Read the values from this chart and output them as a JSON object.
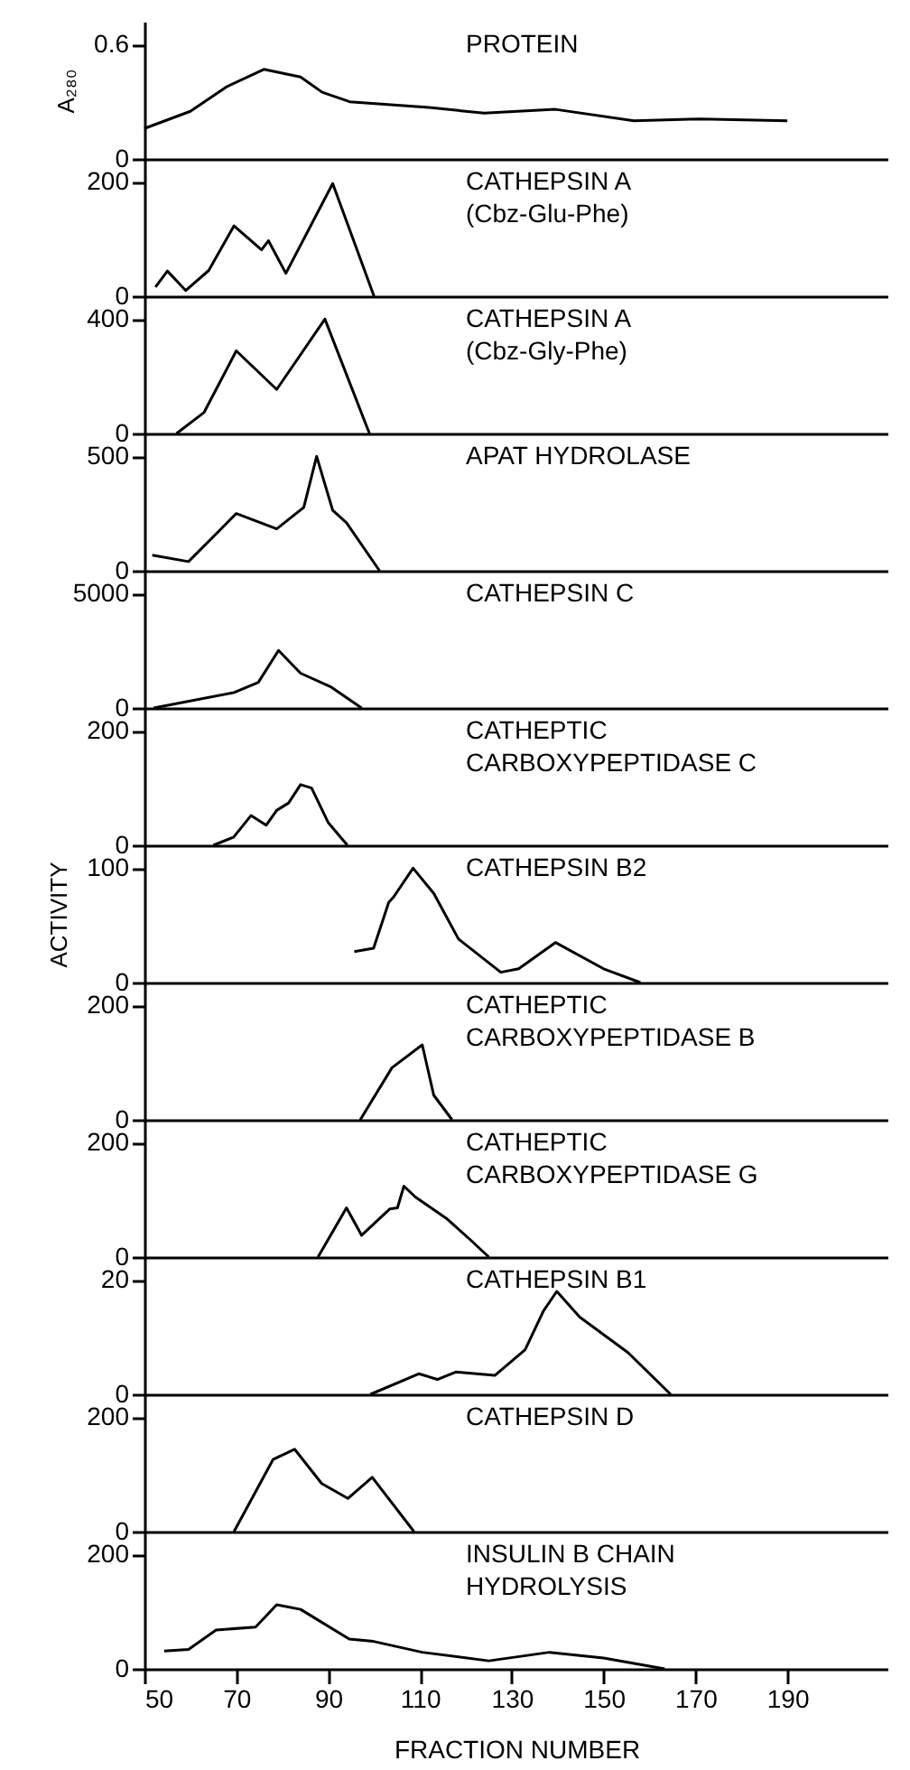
{
  "chart_data": [
    {
      "type": "line",
      "title": "PROTEIN",
      "ylabel": "A₂₈₀",
      "tick_labels": "y",
      "xlim": [
        50,
        212
      ],
      "ylim": [
        0,
        0.72
      ],
      "yticks": [
        0,
        0.6
      ],
      "x": [
        50,
        60,
        68,
        76,
        84,
        88.7,
        94.7,
        112,
        124,
        139.5,
        156.6,
        171,
        190
      ],
      "series": [
        {
          "color": "#000000",
          "values": [
            0.16,
            0.25,
            0.38,
            0.47,
            0.43,
            0.35,
            0.3,
            0.27,
            0.24,
            0.26,
            0.2,
            0.21,
            0.2
          ]
        }
      ]
    },
    {
      "type": "line",
      "title": "CATHEPSIN A\n(Cbz-Glu-Phe)",
      "tick_labels": "y",
      "xlim": [
        50,
        212
      ],
      "ylim": [
        0,
        240
      ],
      "yticks": [
        0,
        200
      ],
      "x": [
        52.4,
        55,
        59,
        64,
        69.5,
        75.5,
        77,
        80.8,
        91,
        100
      ],
      "series": [
        {
          "color": "#000000",
          "values": [
            16,
            44,
            10,
            45,
            123,
            81,
            97,
            40,
            197,
            0
          ]
        }
      ]
    },
    {
      "type": "line",
      "title": "CATHEPSIN A\n(Cbz-Gly-Phe)",
      "tick_labels": "y",
      "xlim": [
        50,
        212
      ],
      "ylim": [
        0,
        480
      ],
      "yticks": [
        0,
        400
      ],
      "x": [
        57,
        63,
        70,
        78.8,
        89.3,
        99
      ],
      "series": [
        {
          "color": "#000000",
          "values": [
            0,
            74,
            289,
            154,
            400,
            0
          ]
        }
      ]
    },
    {
      "type": "line",
      "title": "APAT HYDROLASE",
      "tick_labels": "y",
      "xlim": [
        50,
        212
      ],
      "ylim": [
        0,
        600
      ],
      "yticks": [
        0,
        500
      ],
      "x": [
        51.7,
        59.6,
        66,
        70,
        78.8,
        84.7,
        87.5,
        91,
        94,
        101.2
      ],
      "series": [
        {
          "color": "#000000",
          "values": [
            68,
            40,
            169,
            250,
            183,
            277,
            500,
            264,
            210,
            0
          ]
        }
      ]
    },
    {
      "type": "line",
      "title": "CATHEPSIN C",
      "tick_labels": "y",
      "xlim": [
        50,
        212
      ],
      "ylim": [
        0,
        6000
      ],
      "yticks": [
        0,
        5000
      ],
      "x": [
        52,
        69.5,
        74.8,
        79.2,
        84,
        90.7,
        97.3
      ],
      "series": [
        {
          "color": "#000000",
          "values": [
            0,
            675,
            1120,
            2515,
            1520,
            910,
            0
          ]
        }
      ]
    },
    {
      "type": "line",
      "title": "CATHEPTIC\nCARBOXYPEPTIDASE  C",
      "tick_labels": "y",
      "xlim": [
        50,
        212
      ],
      "ylim": [
        0,
        240
      ],
      "yticks": [
        0,
        200
      ],
      "x": [
        65,
        69.4,
        73.2,
        76.5,
        78.8,
        81.4,
        84,
        86.4,
        90,
        94.2
      ],
      "series": [
        {
          "color": "#000000",
          "values": [
            0,
            14,
            52,
            35,
            61,
            74,
            106,
            100,
            40,
            0
          ]
        }
      ]
    },
    {
      "type": "line",
      "title": "CATHEPSIN  B2",
      "ylabel": "ACTIVITY",
      "tick_labels": "y",
      "xlim": [
        50,
        212
      ],
      "ylim": [
        0,
        120
      ],
      "yticks": [
        0,
        100
      ],
      "x": [
        95.7,
        99.9,
        103.2,
        104.3,
        108.5,
        113,
        118.4,
        127.6,
        131.5,
        139.5,
        150,
        158
      ],
      "series": [
        {
          "color": "#000000",
          "values": [
            27,
            30,
            70,
            75,
            100,
            78,
            38,
            9,
            12,
            35,
            12,
            0
          ]
        }
      ]
    },
    {
      "type": "line",
      "title": "CATHEPTIC\nCARBOXYPEPTIDASE  B",
      "tick_labels": "y",
      "xlim": [
        50,
        212
      ],
      "ylim": [
        0,
        240
      ],
      "yticks": [
        0,
        200
      ],
      "x": [
        97,
        103.9,
        110.5,
        113,
        117
      ],
      "series": [
        {
          "color": "#000000",
          "values": [
            0,
            91,
            131,
            43,
            0
          ]
        }
      ]
    },
    {
      "type": "line",
      "title": "CATHEPTIC\nCARBOXYPEPTIDASE  G",
      "tick_labels": "y",
      "xlim": [
        50,
        212
      ],
      "ylim": [
        0,
        240
      ],
      "yticks": [
        0,
        200
      ],
      "x": [
        87.8,
        94,
        97.3,
        103.4,
        105.1,
        106.5,
        109,
        115.7,
        121,
        125
      ],
      "series": [
        {
          "color": "#000000",
          "values": [
            0,
            86,
            38,
            84,
            86,
            124,
            105,
            68,
            30,
            0
          ]
        }
      ]
    },
    {
      "type": "line",
      "title": "CATHEPSIN  B1",
      "tick_labels": "y",
      "xlim": [
        50,
        212
      ],
      "ylim": [
        0,
        24
      ],
      "yticks": [
        0,
        20
      ],
      "x": [
        99.2,
        109.8,
        113.8,
        117.8,
        126.3,
        132.9,
        136.9,
        139.8,
        144.8,
        155.3,
        164.6
      ],
      "series": [
        {
          "color": "#000000",
          "values": [
            0,
            3.6,
            2.6,
            3.9,
            3.3,
            7.8,
            14.6,
            18,
            13.5,
            7.3,
            0
          ]
        }
      ]
    },
    {
      "type": "line",
      "title": "CATHEPSIN  D",
      "tick_labels": "y",
      "xlim": [
        50,
        212
      ],
      "ylim": [
        0,
        240
      ],
      "yticks": [
        0,
        200
      ],
      "x": [
        69.5,
        78,
        82.7,
        88.6,
        94.3,
        99.6,
        108.7
      ],
      "series": [
        {
          "color": "#000000",
          "values": [
            0,
            126,
            144,
            84,
            58,
            95,
            0
          ]
        }
      ]
    },
    {
      "type": "line",
      "title": "INSULIN  B  CHAIN\nHYDROLYSIS",
      "xlabel": "FRACTION NUMBER",
      "xlim": [
        50,
        212
      ],
      "xticks": [
        50,
        70,
        90,
        110,
        130,
        150,
        170,
        190
      ],
      "ylim": [
        0,
        240
      ],
      "yticks": [
        0,
        200
      ],
      "x": [
        54.3,
        59.6,
        65.6,
        74.2,
        78.8,
        84,
        94.6,
        99.9,
        110.5,
        125,
        138.2,
        150,
        163.3
      ],
      "series": [
        {
          "color": "#000000",
          "values": [
            31,
            34,
            68,
            73,
            112,
            104,
            52,
            48,
            29,
            14,
            29,
            19,
            0
          ]
        }
      ]
    }
  ]
}
